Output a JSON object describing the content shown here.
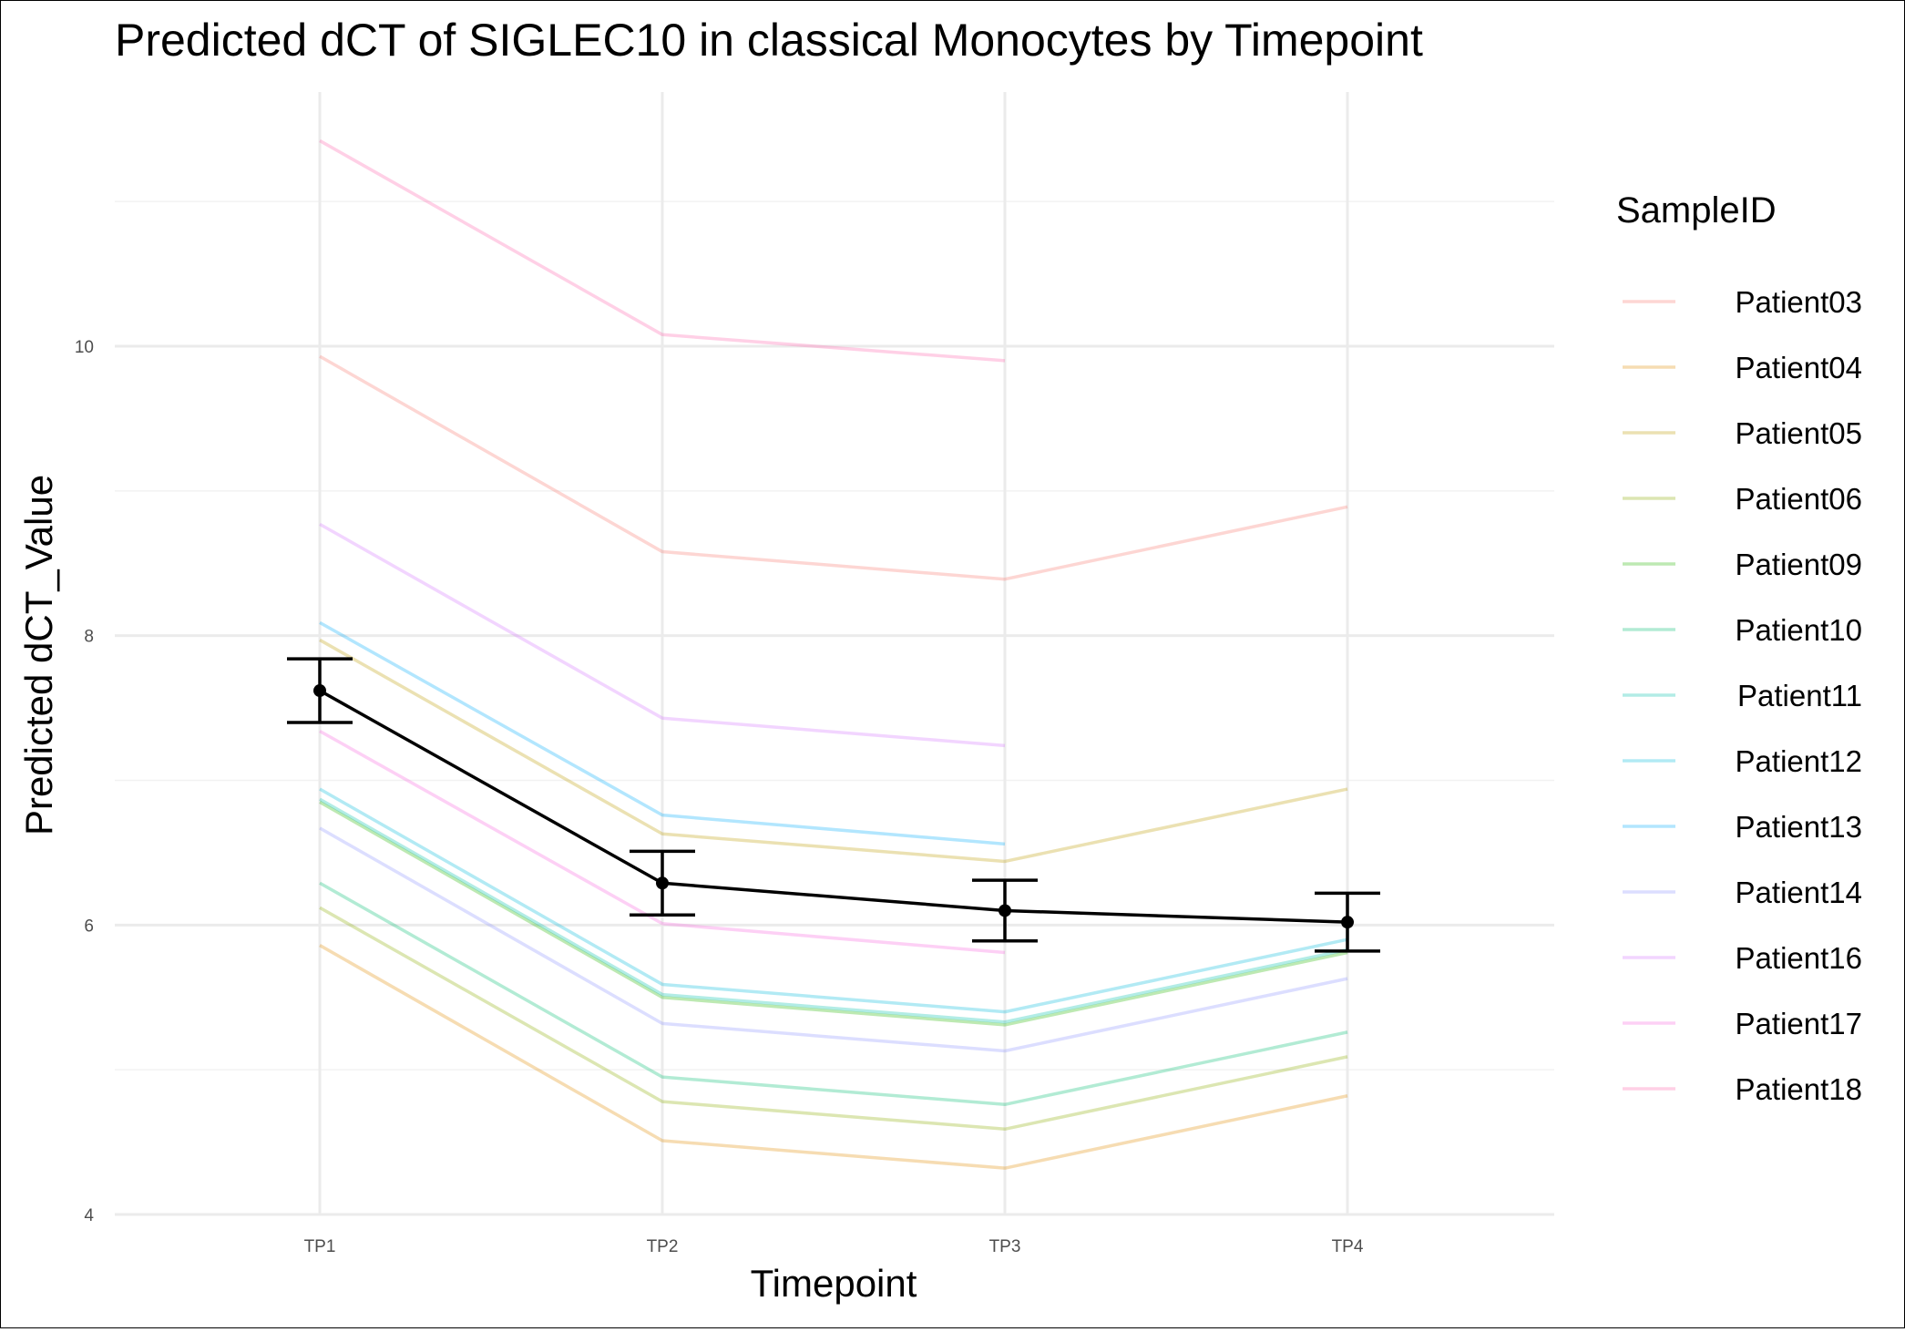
{
  "chart_data": {
    "type": "line",
    "title": "Predicted dCT of  SIGLEC10 in  classical  Monocytes by Timepoint",
    "xlabel": "Timepoint",
    "ylabel": "Predicted dCT_Value",
    "categories": [
      "TP1",
      "TP2",
      "TP3",
      "TP4"
    ],
    "ylim": [
      4,
      12.3
    ],
    "yticks": [
      4,
      6,
      8,
      10
    ],
    "grid": true,
    "legend": {
      "title": "SampleID",
      "position": "right"
    },
    "series": [
      {
        "name": "Patient03",
        "color": "#F8766D",
        "values": [
          9.93,
          8.58,
          8.39,
          8.89
        ]
      },
      {
        "name": "Patient04",
        "color": "#E18A00",
        "values": [
          5.86,
          4.51,
          4.32,
          4.82
        ]
      },
      {
        "name": "Patient05",
        "color": "#BE9C00",
        "values": [
          7.97,
          6.63,
          6.44,
          6.94
        ]
      },
      {
        "name": "Patient06",
        "color": "#8CAB00",
        "values": [
          6.12,
          4.78,
          4.59,
          5.09
        ]
      },
      {
        "name": "Patient09",
        "color": "#24B700",
        "values": [
          6.85,
          5.5,
          5.31,
          5.81
        ]
      },
      {
        "name": "Patient10",
        "color": "#00BE70",
        "values": [
          6.29,
          4.95,
          4.76,
          5.26
        ]
      },
      {
        "name": "Patient11",
        "color": "#00C1AB",
        "values": [
          6.87,
          5.52,
          5.33,
          5.83
        ]
      },
      {
        "name": "Patient12",
        "color": "#00BBDA",
        "values": [
          6.94,
          5.59,
          5.4,
          5.9
        ]
      },
      {
        "name": "Patient13",
        "color": "#00ACFC",
        "values": [
          8.09,
          6.76,
          6.56,
          null
        ]
      },
      {
        "name": "Patient14",
        "color": "#8B93FF",
        "values": [
          6.67,
          5.32,
          5.13,
          5.63
        ]
      },
      {
        "name": "Patient16",
        "color": "#D575FE",
        "values": [
          8.77,
          7.43,
          7.24,
          null
        ]
      },
      {
        "name": "Patient17",
        "color": "#F962DD",
        "values": [
          7.34,
          6.01,
          5.81,
          null
        ]
      },
      {
        "name": "Patient18",
        "color": "#FF65AC",
        "values": [
          11.42,
          10.08,
          9.9,
          null
        ]
      }
    ],
    "mean": {
      "values": [
        7.62,
        6.29,
        6.1,
        6.02
      ],
      "lower": [
        7.4,
        6.07,
        5.89,
        5.82
      ],
      "upper": [
        7.84,
        6.51,
        6.31,
        6.22
      ],
      "color": "#000000"
    }
  }
}
